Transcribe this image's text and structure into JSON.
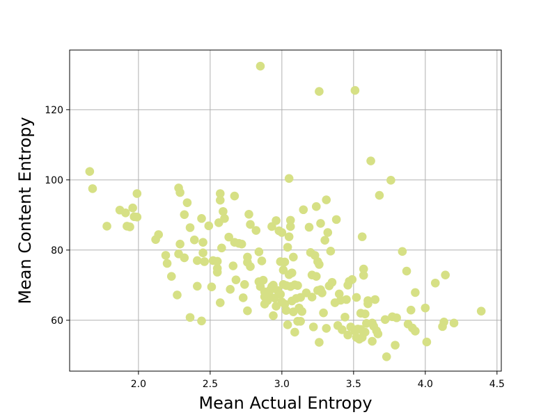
{
  "chart_data": {
    "type": "scatter",
    "title": "",
    "xlabel": "Mean Actual Entropy",
    "ylabel": "Mean Content Entropy",
    "xlim": [
      1.52,
      4.53
    ],
    "ylim": [
      45.5,
      137
    ],
    "xticks": [
      2.0,
      2.5,
      3.0,
      3.5,
      4.0,
      4.5
    ],
    "xtick_labels": [
      "2.0",
      "2.5",
      "3.0",
      "3.5",
      "4.0",
      "4.5"
    ],
    "yticks": [
      60,
      80,
      100,
      120
    ],
    "ytick_labels": [
      "60",
      "80",
      "100",
      "120"
    ],
    "grid": true,
    "legend": "none",
    "point_color": "#d6e085",
    "points": [
      [
        1.66,
        102.4
      ],
      [
        1.68,
        97.5
      ],
      [
        1.78,
        86.8
      ],
      [
        1.87,
        91.4
      ],
      [
        1.91,
        90.6
      ],
      [
        1.92,
        86.8
      ],
      [
        1.94,
        86.6
      ],
      [
        1.96,
        92
      ],
      [
        1.97,
        89.5
      ],
      [
        1.99,
        96.1
      ],
      [
        1.99,
        89.4
      ],
      [
        2.12,
        83
      ],
      [
        2.14,
        84.4
      ],
      [
        2.19,
        78.5
      ],
      [
        2.2,
        76.2
      ],
      [
        2.23,
        72.5
      ],
      [
        2.27,
        67.2
      ],
      [
        2.28,
        97.7
      ],
      [
        2.29,
        96.4
      ],
      [
        2.29,
        81.7
      ],
      [
        2.28,
        78.9
      ],
      [
        2.32,
        77.8
      ],
      [
        2.32,
        90.1
      ],
      [
        2.34,
        93.5
      ],
      [
        2.36,
        86.4
      ],
      [
        2.36,
        60.8
      ],
      [
        2.39,
        82.9
      ],
      [
        2.41,
        77
      ],
      [
        2.41,
        69.7
      ],
      [
        2.44,
        59.8
      ],
      [
        2.44,
        89
      ],
      [
        2.45,
        82.2
      ],
      [
        2.45,
        79.2
      ],
      [
        2.46,
        76.7
      ],
      [
        2.49,
        86.9
      ],
      [
        2.51,
        69.5
      ],
      [
        2.52,
        77
      ],
      [
        2.55,
        76.8
      ],
      [
        2.55,
        74.8
      ],
      [
        2.55,
        73.7
      ],
      [
        2.56,
        87.8
      ],
      [
        2.57,
        96.1
      ],
      [
        2.57,
        94.2
      ],
      [
        2.57,
        65
      ],
      [
        2.58,
        80.6
      ],
      [
        2.59,
        91
      ],
      [
        2.6,
        89
      ],
      [
        2.63,
        83.7
      ],
      [
        2.64,
        68.8
      ],
      [
        2.66,
        75.5
      ],
      [
        2.67,
        95.4
      ],
      [
        2.67,
        82.2
      ],
      [
        2.68,
        71.5
      ],
      [
        2.7,
        81.9
      ],
      [
        2.72,
        81.7
      ],
      [
        2.73,
        66.4
      ],
      [
        2.74,
        70.2
      ],
      [
        2.76,
        78
      ],
      [
        2.76,
        76.5
      ],
      [
        2.76,
        62.7
      ],
      [
        2.77,
        90.2
      ],
      [
        2.78,
        87.3
      ],
      [
        2.78,
        75.3
      ],
      [
        2.82,
        85.6
      ],
      [
        2.84,
        79.5
      ],
      [
        2.85,
        132.4
      ],
      [
        2.84,
        71
      ],
      [
        2.85,
        69.6
      ],
      [
        2.86,
        76.9
      ],
      [
        2.87,
        71.4
      ],
      [
        2.88,
        68.1
      ],
      [
        2.88,
        66.7
      ],
      [
        2.88,
        64.6
      ],
      [
        2.9,
        65.6
      ],
      [
        2.91,
        67.6
      ],
      [
        2.92,
        68.7
      ],
      [
        2.93,
        86.7
      ],
      [
        2.93,
        69.6
      ],
      [
        2.94,
        70
      ],
      [
        2.94,
        61.3
      ],
      [
        2.95,
        66.3
      ],
      [
        2.96,
        64
      ],
      [
        2.96,
        88.4
      ],
      [
        2.97,
        68.5
      ],
      [
        2.98,
        85.5
      ],
      [
        2.99,
        67.4
      ],
      [
        2.99,
        76.7
      ],
      [
        3,
        65.2
      ],
      [
        3,
        85
      ],
      [
        3.01,
        74.3
      ],
      [
        3.01,
        70.2
      ],
      [
        3.02,
        76.6
      ],
      [
        3.02,
        64.6
      ],
      [
        3.03,
        62.8
      ],
      [
        3.03,
        69.9
      ],
      [
        3.04,
        80.8
      ],
      [
        3.04,
        58.7
      ],
      [
        3.05,
        100.4
      ],
      [
        3.05,
        83.8
      ],
      [
        3.05,
        73
      ],
      [
        3.06,
        88.5
      ],
      [
        3.06,
        86.7
      ],
      [
        3.06,
        69.6
      ],
      [
        3.07,
        65.5
      ],
      [
        3.07,
        73.5
      ],
      [
        3.08,
        78
      ],
      [
        3.08,
        62.4
      ],
      [
        3.09,
        70.1
      ],
      [
        3.09,
        56.6
      ],
      [
        3.1,
        66.2
      ],
      [
        3.11,
        69.9
      ],
      [
        3.11,
        59.7
      ],
      [
        3.12,
        63.5
      ],
      [
        3.13,
        66.5
      ],
      [
        3.13,
        59.7
      ],
      [
        3.14,
        62.5
      ],
      [
        3.15,
        91.5
      ],
      [
        3.17,
        67.8
      ],
      [
        3.19,
        86.5
      ],
      [
        3.2,
        79.3
      ],
      [
        3.21,
        72.9
      ],
      [
        3.21,
        66.6
      ],
      [
        3.22,
        58.1
      ],
      [
        3.23,
        78.5
      ],
      [
        3.24,
        92.4
      ],
      [
        3.24,
        72.5
      ],
      [
        3.25,
        68.5
      ],
      [
        3.25,
        76.7
      ],
      [
        3.26,
        125.2
      ],
      [
        3.26,
        75.9
      ],
      [
        3.26,
        53.7
      ],
      [
        3.27,
        87.6
      ],
      [
        3.27,
        68.7
      ],
      [
        3.28,
        67.8
      ],
      [
        3.29,
        62.1
      ],
      [
        3.3,
        82.8
      ],
      [
        3.31,
        57.7
      ],
      [
        3.31,
        94.3
      ],
      [
        3.32,
        85
      ],
      [
        3.33,
        69.8
      ],
      [
        3.34,
        79.7
      ],
      [
        3.35,
        70.8
      ],
      [
        3.37,
        65
      ],
      [
        3.38,
        88.7
      ],
      [
        3.39,
        58.5
      ],
      [
        3.4,
        67.5
      ],
      [
        3.41,
        65.7
      ],
      [
        3.42,
        57.3
      ],
      [
        3.44,
        60.9
      ],
      [
        3.45,
        65.9
      ],
      [
        3.46,
        55.8
      ],
      [
        3.46,
        70
      ],
      [
        3.47,
        71.1
      ],
      [
        3.48,
        58.1
      ],
      [
        3.49,
        71.6
      ],
      [
        3.51,
        125.5
      ],
      [
        3.51,
        56.9
      ],
      [
        3.52,
        55.1
      ],
      [
        3.52,
        66.5
      ],
      [
        3.53,
        57.5
      ],
      [
        3.54,
        54.6
      ],
      [
        3.55,
        57.4
      ],
      [
        3.55,
        62
      ],
      [
        3.56,
        55.1
      ],
      [
        3.56,
        83.8
      ],
      [
        3.57,
        72.8
      ],
      [
        3.57,
        74.6
      ],
      [
        3.58,
        61.8
      ],
      [
        3.58,
        56.6
      ],
      [
        3.59,
        59.1
      ],
      [
        3.6,
        65.6
      ],
      [
        3.6,
        64.7
      ],
      [
        3.62,
        105.4
      ],
      [
        3.63,
        59.2
      ],
      [
        3.63,
        54
      ],
      [
        3.64,
        58.3
      ],
      [
        3.65,
        65.9
      ],
      [
        3.66,
        57
      ],
      [
        3.67,
        56.1
      ],
      [
        3.68,
        95.6
      ],
      [
        3.72,
        60.2
      ],
      [
        3.73,
        49.6
      ],
      [
        3.76,
        99.9
      ],
      [
        3.77,
        61
      ],
      [
        3.79,
        52.9
      ],
      [
        3.8,
        60.7
      ],
      [
        3.84,
        79.6
      ],
      [
        3.87,
        74
      ],
      [
        3.88,
        58.9
      ],
      [
        3.9,
        62.9
      ],
      [
        3.91,
        57.8
      ],
      [
        3.93,
        67.9
      ],
      [
        3.93,
        56.9
      ],
      [
        4,
        63.5
      ],
      [
        4.01,
        53.8
      ],
      [
        4.07,
        70.6
      ],
      [
        4.12,
        58.2
      ],
      [
        4.13,
        59.5
      ],
      [
        4.14,
        72.9
      ],
      [
        4.2,
        59.2
      ],
      [
        4.39,
        62.6
      ]
    ]
  }
}
